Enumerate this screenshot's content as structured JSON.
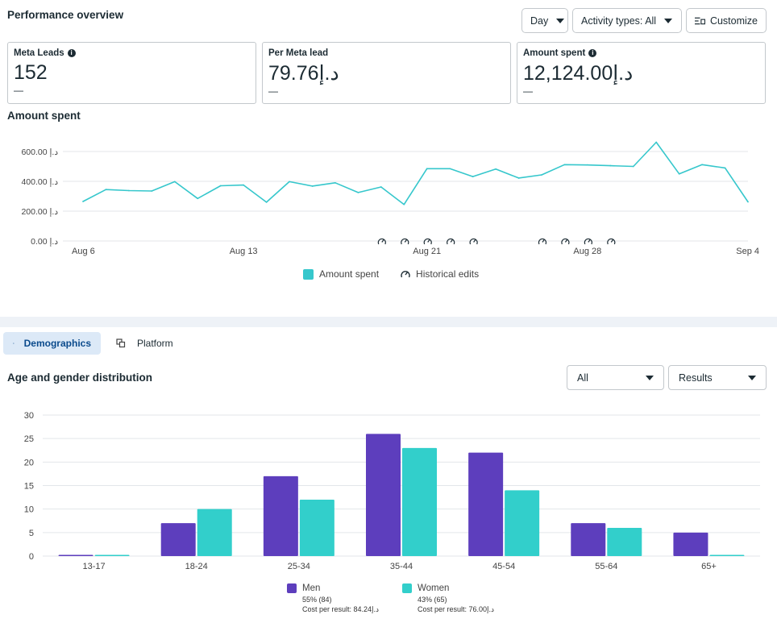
{
  "performance": {
    "title": "Performance overview",
    "day_label": "Day",
    "activity_label": "Activity types: All",
    "customize_label": "Customize"
  },
  "metrics": [
    {
      "label": "Meta Leads",
      "value": "152",
      "sub": "—",
      "has_info": true
    },
    {
      "label": "Per Meta lead",
      "value": "79.76د.إ",
      "sub": "—",
      "has_info": false
    },
    {
      "label": "Amount spent",
      "value": "12,124.00د.إ",
      "sub": "—",
      "has_info": true
    }
  ],
  "line_chart_title": "Amount spent",
  "legend": {
    "amount_spent": "Amount spent",
    "historical_edits": "Historical edits"
  },
  "tabs": {
    "demographics": "Demographics",
    "platform": "Platform"
  },
  "age_gender": {
    "title": "Age and gender distribution",
    "filter_value": "All",
    "metric_value": "Results"
  },
  "bar_legend": {
    "men": {
      "name": "Men",
      "share": "55% (84)",
      "cost": "Cost per result: 84.24د.إ"
    },
    "women": {
      "name": "Women",
      "share": "43% (65)",
      "cost": "Cost per result: 76.00د.إ"
    }
  },
  "colors": {
    "line": "#36c7cc",
    "men": "#5d3ebd",
    "women": "#32cfcb",
    "grid": "#e3e6ea"
  },
  "chart_data": [
    {
      "type": "line",
      "title": "Amount spent",
      "series": [
        {
          "name": "Amount spent",
          "values": [
            265,
            345,
            338,
            335,
            398,
            285,
            370,
            375,
            260,
            398,
            368,
            390,
            325,
            362,
            245,
            485,
            485,
            432,
            482,
            422,
            443,
            512,
            510,
            505,
            500,
            662,
            450,
            512,
            490,
            262
          ]
        }
      ],
      "x_ticks": [
        "Aug 6",
        "Aug 13",
        "Aug 21",
        "Aug 28",
        "Sep 4"
      ],
      "x_tick_index": [
        0,
        7,
        15,
        22,
        29
      ],
      "y_ticks": [
        "0.00 د.إ",
        "200.00 د.إ",
        "400.00 د.إ",
        "600.00 د.إ"
      ],
      "ylim": [
        0,
        600
      ],
      "historical_edit_index": [
        13,
        14,
        15,
        16,
        17,
        20,
        21,
        22,
        23
      ],
      "legend": "bottom-center",
      "grid": true
    },
    {
      "type": "bar",
      "title": "Age and gender distribution",
      "categories": [
        "13-17",
        "18-24",
        "25-34",
        "35-44",
        "45-54",
        "55-64",
        "65+"
      ],
      "series": [
        {
          "name": "Men",
          "values": [
            0,
            7,
            17,
            26,
            22,
            7,
            5
          ]
        },
        {
          "name": "Women",
          "values": [
            0,
            10,
            12,
            23,
            14,
            6,
            0
          ]
        }
      ],
      "y_ticks": [
        "0",
        "5",
        "10",
        "15",
        "20",
        "25",
        "30"
      ],
      "ylim": [
        0,
        30
      ],
      "legend": "bottom-center",
      "grid": true
    }
  ]
}
